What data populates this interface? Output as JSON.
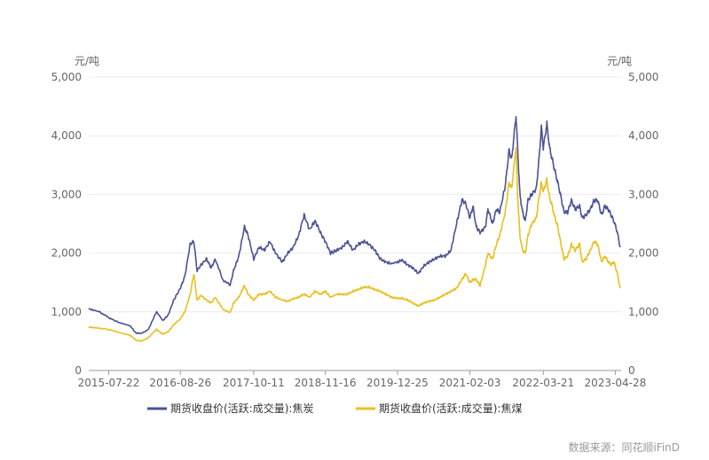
{
  "chart_data": {
    "type": "line",
    "unit_left": "元/吨",
    "unit_right": "元/吨",
    "source": "数据来源：同花顺iFinD",
    "ylim": [
      0,
      5000
    ],
    "y_ticks": [
      "0",
      "1,000",
      "2,000",
      "3,000",
      "4,000",
      "5,000"
    ],
    "y_tick_values": [
      0,
      1000,
      2000,
      3000,
      4000,
      5000
    ],
    "x_range": [
      "2015-04-01",
      "2023-05-31"
    ],
    "x_tick_labels": [
      "2015-07-22",
      "2016-08-26",
      "2017-10-11",
      "2018-11-16",
      "2019-12-25",
      "2021-02-03",
      "2022-03-21",
      "2023-04-28"
    ],
    "grid": true,
    "legend_position": "bottom",
    "series": [
      {
        "name": "期货收盘价(活跃:成交量):焦炭",
        "color": "#4b5394",
        "points": [
          [
            "2015-04-01",
            1050
          ],
          [
            "2015-06-01",
            1000
          ],
          [
            "2015-07-22",
            900
          ],
          [
            "2015-09-15",
            820
          ],
          [
            "2015-11-20",
            760
          ],
          [
            "2015-12-20",
            640
          ],
          [
            "2016-01-20",
            630
          ],
          [
            "2016-03-01",
            700
          ],
          [
            "2016-04-15",
            1000
          ],
          [
            "2016-05-20",
            850
          ],
          [
            "2016-06-20",
            950
          ],
          [
            "2016-07-20",
            1200
          ],
          [
            "2016-08-26",
            1400
          ],
          [
            "2016-09-20",
            1600
          ],
          [
            "2016-10-20",
            2150
          ],
          [
            "2016-11-10",
            2200
          ],
          [
            "2016-11-28",
            1700
          ],
          [
            "2016-12-20",
            1800
          ],
          [
            "2017-01-20",
            1900
          ],
          [
            "2017-02-15",
            1750
          ],
          [
            "2017-03-10",
            1900
          ],
          [
            "2017-04-20",
            1550
          ],
          [
            "2017-06-01",
            1450
          ],
          [
            "2017-06-20",
            1700
          ],
          [
            "2017-07-20",
            1950
          ],
          [
            "2017-08-20",
            2450
          ],
          [
            "2017-09-10",
            2300
          ],
          [
            "2017-10-11",
            1900
          ],
          [
            "2017-11-10",
            2100
          ],
          [
            "2017-12-10",
            2050
          ],
          [
            "2018-01-10",
            2200
          ],
          [
            "2018-02-10",
            2000
          ],
          [
            "2018-03-20",
            1850
          ],
          [
            "2018-04-20",
            2000
          ],
          [
            "2018-05-20",
            2100
          ],
          [
            "2018-06-20",
            2300
          ],
          [
            "2018-07-20",
            2650
          ],
          [
            "2018-08-20",
            2400
          ],
          [
            "2018-09-20",
            2550
          ],
          [
            "2018-10-20",
            2350
          ],
          [
            "2018-11-16",
            2200
          ],
          [
            "2018-12-15",
            2000
          ],
          [
            "2019-01-20",
            2050
          ],
          [
            "2019-02-20",
            2100
          ],
          [
            "2019-03-20",
            2200
          ],
          [
            "2019-04-20",
            2050
          ],
          [
            "2019-05-20",
            2150
          ],
          [
            "2019-06-20",
            2200
          ],
          [
            "2019-07-20",
            2150
          ],
          [
            "2019-08-20",
            2050
          ],
          [
            "2019-09-20",
            1900
          ],
          [
            "2019-10-20",
            1850
          ],
          [
            "2019-11-20",
            1820
          ],
          [
            "2019-12-25",
            1850
          ],
          [
            "2020-01-20",
            1880
          ],
          [
            "2020-02-20",
            1800
          ],
          [
            "2020-03-20",
            1750
          ],
          [
            "2020-04-20",
            1650
          ],
          [
            "2020-05-20",
            1780
          ],
          [
            "2020-06-20",
            1850
          ],
          [
            "2020-07-20",
            1900
          ],
          [
            "2020-08-20",
            1950
          ],
          [
            "2020-09-20",
            1950
          ],
          [
            "2020-10-20",
            2050
          ],
          [
            "2020-11-20",
            2500
          ],
          [
            "2020-12-20",
            2900
          ],
          [
            "2021-01-10",
            2850
          ],
          [
            "2021-02-03",
            2600
          ],
          [
            "2021-02-20",
            2800
          ],
          [
            "2021-03-10",
            2450
          ],
          [
            "2021-04-01",
            2350
          ],
          [
            "2021-05-01",
            2450
          ],
          [
            "2021-05-15",
            2750
          ],
          [
            "2021-06-10",
            2500
          ],
          [
            "2021-07-01",
            2750
          ],
          [
            "2021-07-20",
            2700
          ],
          [
            "2021-08-20",
            3150
          ],
          [
            "2021-09-10",
            3750
          ],
          [
            "2021-09-25",
            3600
          ],
          [
            "2021-10-19",
            4350
          ],
          [
            "2021-10-28",
            3800
          ],
          [
            "2021-11-10",
            3000
          ],
          [
            "2021-11-25",
            2700
          ],
          [
            "2021-12-10",
            2550
          ],
          [
            "2021-12-25",
            2900
          ],
          [
            "2022-01-15",
            3000
          ],
          [
            "2022-02-10",
            3100
          ],
          [
            "2022-02-25",
            3600
          ],
          [
            "2022-03-10",
            4150
          ],
          [
            "2022-03-21",
            3800
          ],
          [
            "2022-04-10",
            4200
          ],
          [
            "2022-04-25",
            3800
          ],
          [
            "2022-05-10",
            3600
          ],
          [
            "2022-05-25",
            3400
          ],
          [
            "2022-06-10",
            3200
          ],
          [
            "2022-06-25",
            3000
          ],
          [
            "2022-07-15",
            2700
          ],
          [
            "2022-08-05",
            2700
          ],
          [
            "2022-08-25",
            2900
          ],
          [
            "2022-09-15",
            2750
          ],
          [
            "2022-10-10",
            2800
          ],
          [
            "2022-10-25",
            2600
          ],
          [
            "2022-11-15",
            2650
          ],
          [
            "2022-12-10",
            2750
          ],
          [
            "2022-12-30",
            2900
          ],
          [
            "2023-01-20",
            2900
          ],
          [
            "2023-02-10",
            2650
          ],
          [
            "2023-03-01",
            2800
          ],
          [
            "2023-03-20",
            2750
          ],
          [
            "2023-04-05",
            2650
          ],
          [
            "2023-04-20",
            2550
          ],
          [
            "2023-05-10",
            2350
          ],
          [
            "2023-05-25",
            2100
          ]
        ]
      },
      {
        "name": "期货收盘价(活跃:成交量):焦煤",
        "color": "#e8c021",
        "points": [
          [
            "2015-04-01",
            740
          ],
          [
            "2015-06-01",
            720
          ],
          [
            "2015-07-22",
            700
          ],
          [
            "2015-09-15",
            650
          ],
          [
            "2015-11-20",
            600
          ],
          [
            "2015-12-20",
            520
          ],
          [
            "2016-01-20",
            500
          ],
          [
            "2016-03-01",
            560
          ],
          [
            "2016-04-15",
            700
          ],
          [
            "2016-05-20",
            620
          ],
          [
            "2016-06-20",
            660
          ],
          [
            "2016-07-20",
            780
          ],
          [
            "2016-08-26",
            880
          ],
          [
            "2016-09-20",
            1000
          ],
          [
            "2016-10-20",
            1300
          ],
          [
            "2016-11-10",
            1650
          ],
          [
            "2016-11-28",
            1200
          ],
          [
            "2016-12-20",
            1280
          ],
          [
            "2017-01-20",
            1200
          ],
          [
            "2017-02-15",
            1150
          ],
          [
            "2017-03-10",
            1250
          ],
          [
            "2017-04-20",
            1050
          ],
          [
            "2017-06-01",
            980
          ],
          [
            "2017-06-20",
            1150
          ],
          [
            "2017-07-20",
            1250
          ],
          [
            "2017-08-20",
            1450
          ],
          [
            "2017-09-10",
            1300
          ],
          [
            "2017-10-11",
            1200
          ],
          [
            "2017-11-10",
            1300
          ],
          [
            "2017-12-10",
            1300
          ],
          [
            "2018-01-10",
            1350
          ],
          [
            "2018-02-10",
            1250
          ],
          [
            "2018-03-20",
            1200
          ],
          [
            "2018-04-20",
            1180
          ],
          [
            "2018-05-20",
            1220
          ],
          [
            "2018-06-20",
            1250
          ],
          [
            "2018-07-20",
            1300
          ],
          [
            "2018-08-20",
            1250
          ],
          [
            "2018-09-20",
            1350
          ],
          [
            "2018-10-20",
            1300
          ],
          [
            "2018-11-16",
            1350
          ],
          [
            "2018-12-15",
            1250
          ],
          [
            "2019-01-20",
            1300
          ],
          [
            "2019-02-20",
            1300
          ],
          [
            "2019-03-20",
            1300
          ],
          [
            "2019-04-20",
            1350
          ],
          [
            "2019-05-20",
            1380
          ],
          [
            "2019-06-20",
            1420
          ],
          [
            "2019-07-20",
            1420
          ],
          [
            "2019-08-20",
            1380
          ],
          [
            "2019-09-20",
            1350
          ],
          [
            "2019-10-20",
            1300
          ],
          [
            "2019-11-20",
            1250
          ],
          [
            "2019-12-25",
            1230
          ],
          [
            "2020-01-20",
            1230
          ],
          [
            "2020-02-20",
            1200
          ],
          [
            "2020-03-20",
            1150
          ],
          [
            "2020-04-20",
            1100
          ],
          [
            "2020-05-20",
            1150
          ],
          [
            "2020-06-20",
            1180
          ],
          [
            "2020-07-20",
            1200
          ],
          [
            "2020-08-20",
            1250
          ],
          [
            "2020-09-20",
            1300
          ],
          [
            "2020-10-20",
            1350
          ],
          [
            "2020-11-20",
            1400
          ],
          [
            "2020-12-20",
            1550
          ],
          [
            "2021-01-10",
            1650
          ],
          [
            "2021-02-03",
            1500
          ],
          [
            "2021-02-20",
            1550
          ],
          [
            "2021-03-10",
            1550
          ],
          [
            "2021-04-01",
            1450
          ],
          [
            "2021-05-01",
            1800
          ],
          [
            "2021-05-15",
            2000
          ],
          [
            "2021-06-10",
            1900
          ],
          [
            "2021-07-01",
            2150
          ],
          [
            "2021-07-20",
            2300
          ],
          [
            "2021-08-20",
            2700
          ],
          [
            "2021-09-10",
            3200
          ],
          [
            "2021-09-25",
            3100
          ],
          [
            "2021-10-19",
            3800
          ],
          [
            "2021-10-28",
            3000
          ],
          [
            "2021-11-10",
            2300
          ],
          [
            "2021-11-25",
            2050
          ],
          [
            "2021-12-10",
            2000
          ],
          [
            "2021-12-25",
            2300
          ],
          [
            "2022-01-15",
            2500
          ],
          [
            "2022-02-10",
            2600
          ],
          [
            "2022-02-25",
            2950
          ],
          [
            "2022-03-10",
            3200
          ],
          [
            "2022-03-21",
            3050
          ],
          [
            "2022-04-10",
            3250
          ],
          [
            "2022-04-25",
            2950
          ],
          [
            "2022-05-10",
            2800
          ],
          [
            "2022-05-25",
            2600
          ],
          [
            "2022-06-10",
            2450
          ],
          [
            "2022-06-25",
            2200
          ],
          [
            "2022-07-15",
            1900
          ],
          [
            "2022-08-05",
            1950
          ],
          [
            "2022-08-25",
            2150
          ],
          [
            "2022-09-15",
            2050
          ],
          [
            "2022-10-10",
            2150
          ],
          [
            "2022-10-25",
            1850
          ],
          [
            "2022-11-15",
            1900
          ],
          [
            "2022-12-10",
            2050
          ],
          [
            "2022-12-30",
            2200
          ],
          [
            "2023-01-20",
            2150
          ],
          [
            "2023-02-10",
            1850
          ],
          [
            "2023-03-01",
            1950
          ],
          [
            "2023-03-20",
            1850
          ],
          [
            "2023-04-05",
            1800
          ],
          [
            "2023-04-20",
            1850
          ],
          [
            "2023-05-10",
            1650
          ],
          [
            "2023-05-25",
            1400
          ]
        ]
      }
    ]
  }
}
